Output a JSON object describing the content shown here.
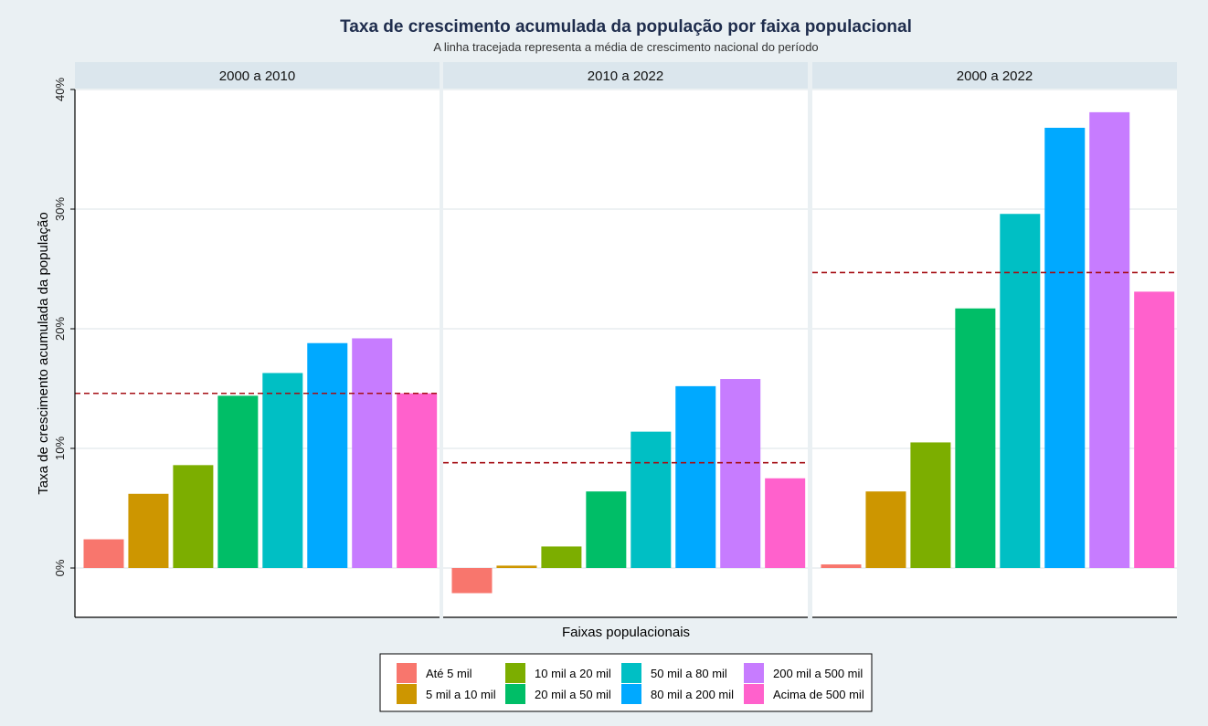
{
  "chart_data": {
    "type": "bar",
    "title": "Taxa de crescimento acumulada da população por faixa populacional",
    "subtitle": "A linha tracejada representa a média de crescimento nacional do período",
    "xlabel": "Faixas populacionais",
    "ylabel": "Taxa de crescimento acumulada da população",
    "ylim": [
      -4,
      40
    ],
    "yticks": [
      0,
      10,
      20,
      30,
      40
    ],
    "ytick_labels": [
      "0%",
      "10%",
      "20%",
      "30%",
      "40%"
    ],
    "grid": true,
    "legend_position": "bottom",
    "categories": [
      "Até 5 mil",
      "5 mil a 10 mil",
      "10 mil a 20 mil",
      "20 mil a 50 mil",
      "50 mil a 80 mil",
      "80 mil a 200 mil",
      "200 mil a 500 mil",
      "Acima de 500 mil"
    ],
    "colors": [
      "#f8766d",
      "#cd9600",
      "#7cae00",
      "#00be67",
      "#00bfc4",
      "#00a9ff",
      "#c77cff",
      "#ff61cc"
    ],
    "mean_line_color": "#a50f15",
    "panels": [
      {
        "label": "2000 a 2010",
        "values": [
          2.4,
          6.2,
          8.6,
          14.4,
          16.3,
          18.8,
          19.2,
          14.6
        ],
        "national_mean": 14.6
      },
      {
        "label": "2010 a 2022",
        "values": [
          -2.1,
          0.2,
          1.8,
          6.4,
          11.4,
          15.2,
          15.8,
          7.5
        ],
        "national_mean": 8.8
      },
      {
        "label": "2000 a 2022",
        "values": [
          0.3,
          6.4,
          10.5,
          21.7,
          29.6,
          36.8,
          38.1,
          23.1
        ],
        "national_mean": 24.7
      }
    ]
  }
}
